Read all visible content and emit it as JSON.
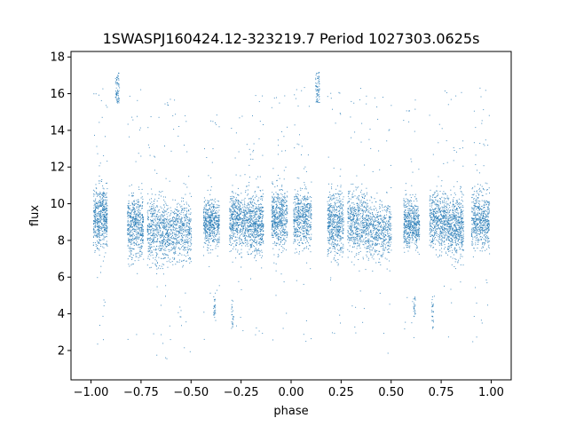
{
  "chart_data": {
    "type": "scatter",
    "title": "1SWASPJ160424.12-323219.7 Period 1027303.0625s",
    "xlabel": "phase",
    "ylabel": "flux",
    "xlim": [
      -1.1,
      1.1
    ],
    "ylim": [
      0.4,
      18.3
    ],
    "xticks": [
      -1.0,
      -0.75,
      -0.5,
      -0.25,
      0.0,
      0.25,
      0.5,
      0.75,
      1.0
    ],
    "xtick_labels": [
      "−1.00",
      "−0.75",
      "−0.50",
      "−0.25",
      "0.00",
      "0.25",
      "0.50",
      "0.75",
      "1.00"
    ],
    "yticks": [
      2,
      4,
      6,
      8,
      10,
      12,
      14,
      16,
      18
    ],
    "ytick_labels": [
      "2",
      "4",
      "6",
      "8",
      "10",
      "12",
      "14",
      "16",
      "18"
    ],
    "grid": false,
    "legend": "none",
    "marker_color": "#1f77b4",
    "series": [
      {
        "clusters": [
          {
            "x": [
              -0.99,
              -0.92
            ],
            "y": [
              7.3,
              11.2
            ]
          },
          {
            "x": [
              -0.82,
              -0.74
            ],
            "y": [
              7.0,
              10.8
            ]
          },
          {
            "x": [
              -0.72,
              -0.62
            ],
            "y": [
              6.5,
              10.6
            ]
          },
          {
            "x": [
              -0.62,
              -0.5
            ],
            "y": [
              6.8,
              10.3
            ]
          },
          {
            "x": [
              -0.44,
              -0.36
            ],
            "y": [
              7.6,
              10.4
            ]
          },
          {
            "x": [
              -0.31,
              -0.22
            ],
            "y": [
              7.4,
              10.8
            ]
          },
          {
            "x": [
              -0.22,
              -0.14
            ],
            "y": [
              7.2,
              10.7
            ]
          },
          {
            "x": [
              -0.1,
              -0.02
            ],
            "y": [
              7.5,
              11.0
            ]
          },
          {
            "x": [
              0.01,
              0.1
            ],
            "y": [
              7.4,
              11.1
            ]
          },
          {
            "x": [
              0.18,
              0.26
            ],
            "y": [
              7.0,
              10.9
            ]
          },
          {
            "x": [
              0.28,
              0.38
            ],
            "y": [
              7.1,
              11.0
            ]
          },
          {
            "x": [
              0.38,
              0.5
            ],
            "y": [
              6.8,
              10.4
            ]
          },
          {
            "x": [
              0.56,
              0.64
            ],
            "y": [
              7.5,
              10.4
            ]
          },
          {
            "x": [
              0.69,
              0.78
            ],
            "y": [
              7.4,
              10.9
            ]
          },
          {
            "x": [
              0.78,
              0.86
            ],
            "y": [
              7.0,
              10.6
            ]
          },
          {
            "x": [
              0.9,
              0.99
            ],
            "y": [
              7.5,
              10.9
            ]
          }
        ],
        "bright_streaks": [
          {
            "x": [
              -0.88,
              -0.86
            ],
            "y": [
              15.5,
              17.2
            ]
          },
          {
            "x": [
              0.12,
              0.14
            ],
            "y": [
              15.5,
              17.2
            ]
          }
        ],
        "dim_streaks": [
          {
            "x": [
              -0.39,
              -0.38
            ],
            "y": [
              3.8,
              5.0
            ]
          },
          {
            "x": [
              -0.3,
              -0.29
            ],
            "y": [
              3.2,
              4.8
            ]
          },
          {
            "x": [
              0.61,
              0.62
            ],
            "y": [
              3.8,
              5.0
            ]
          },
          {
            "x": [
              0.7,
              0.71
            ],
            "y": [
              3.2,
              4.8
            ]
          }
        ],
        "point_count": 9000
      }
    ]
  }
}
